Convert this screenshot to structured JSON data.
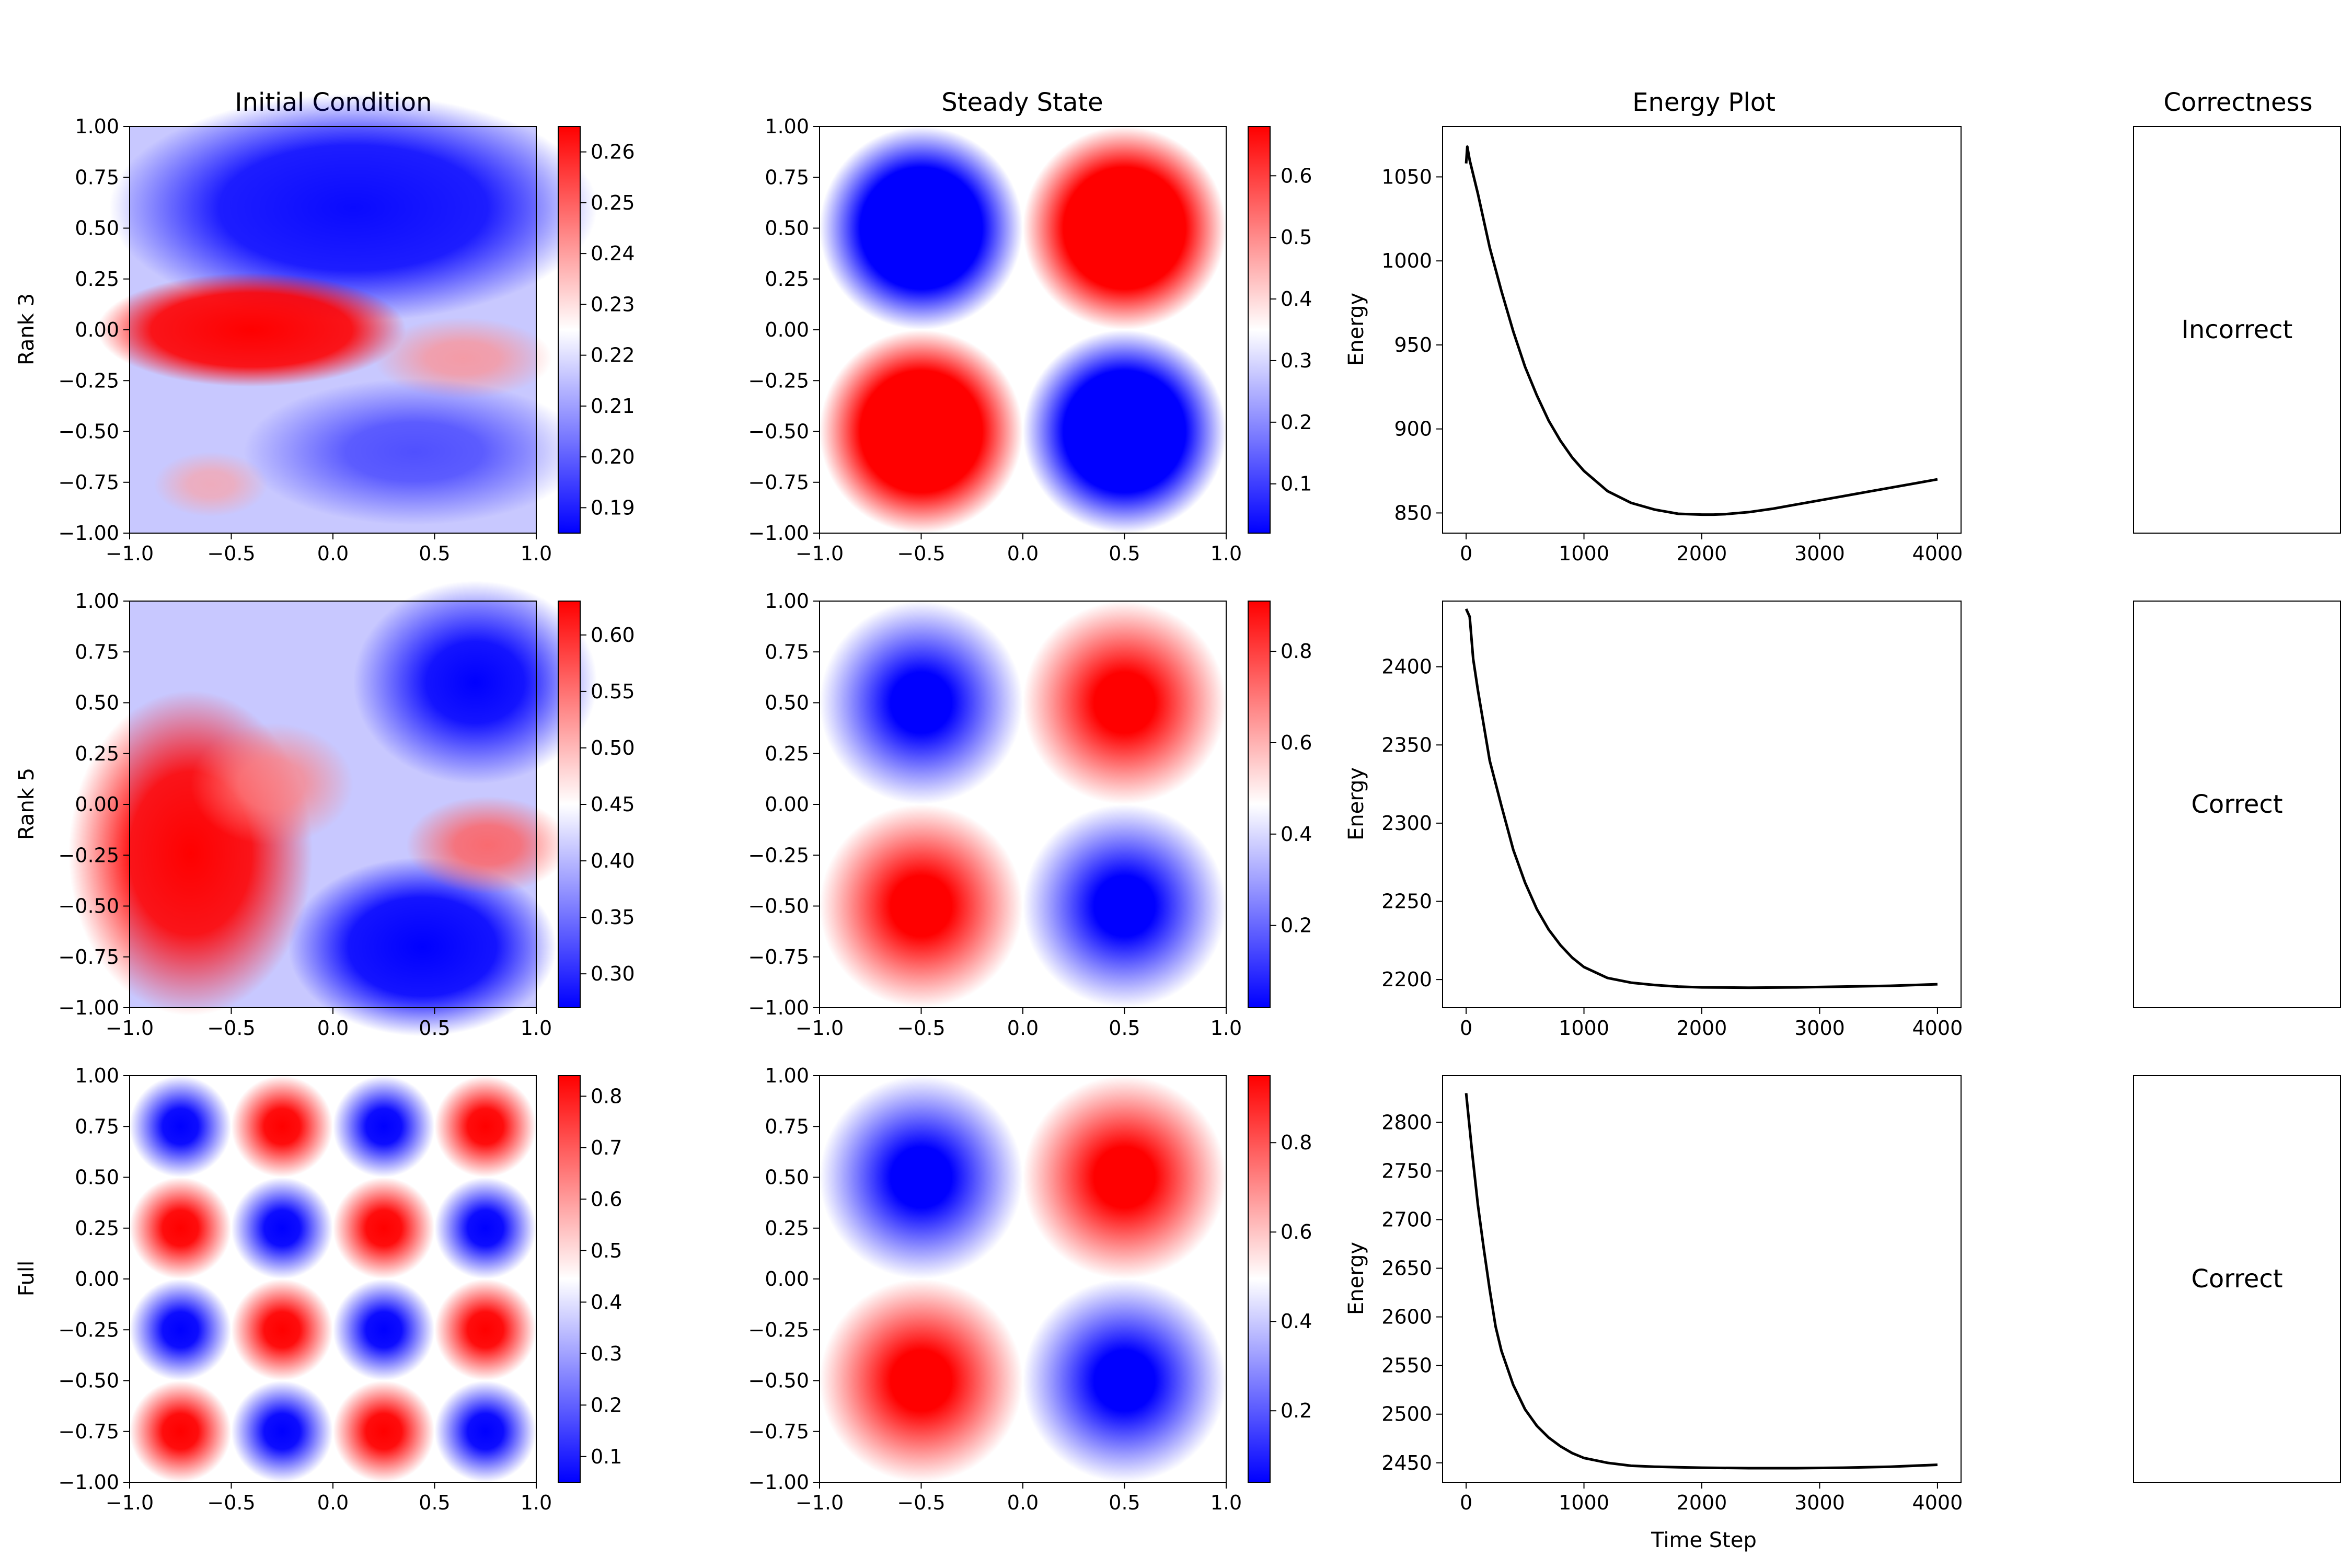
{
  "figure": {
    "column_titles": [
      "Initial Condition",
      "Steady State",
      "Energy Plot",
      "Correctness"
    ],
    "row_labels": [
      "Rank 3",
      "Rank 5",
      "Full"
    ],
    "energy_ylabel": "Energy",
    "energy_xlabel": "Time Step"
  },
  "colors": {
    "cold": "#0000ff",
    "mid": "#ffffff",
    "hot": "#ff0000",
    "line": "#000000"
  },
  "chart_data": [
    {
      "type": "heatmap",
      "panel": "Rank 3 / Initial Condition",
      "cmap": "bwr",
      "xlim": [
        -1,
        1
      ],
      "ylim": [
        -1,
        1
      ],
      "xticks": [
        "−1.0",
        "−0.5",
        "0.0",
        "0.5",
        "1.0"
      ],
      "yticks": [
        "−1.00",
        "−0.75",
        "−0.50",
        "−0.25",
        "0.00",
        "0.25",
        "0.50",
        "0.75",
        "1.00"
      ],
      "colorbar": {
        "vmin": 0.185,
        "vmax": 0.265,
        "ticks": [
          0.19,
          0.2,
          0.21,
          0.22,
          0.23,
          0.24,
          0.25,
          0.26
        ]
      }
    },
    {
      "type": "heatmap",
      "panel": "Rank 3 / Steady State",
      "cmap": "bwr",
      "xlim": [
        -1,
        1
      ],
      "ylim": [
        -1,
        1
      ],
      "xticks": [
        "−1.0",
        "−0.5",
        "0.0",
        "0.5",
        "1.0"
      ],
      "yticks": [
        "−1.00",
        "−0.75",
        "−0.50",
        "−0.25",
        "0.00",
        "0.25",
        "0.50",
        "0.75",
        "1.00"
      ],
      "colorbar": {
        "vmin": 0.02,
        "vmax": 0.68,
        "ticks": [
          0.1,
          0.2,
          0.3,
          0.4,
          0.5,
          0.6
        ]
      }
    },
    {
      "type": "line",
      "panel": "Rank 3 / Energy Plot",
      "xlim": [
        -200,
        4200
      ],
      "ylim": [
        838,
        1080
      ],
      "xticks": [
        0,
        1000,
        2000,
        3000,
        4000
      ],
      "yticks": [
        850,
        900,
        950,
        1000,
        1050
      ],
      "series": [
        {
          "x": [
            0,
            10,
            30,
            100,
            200,
            300,
            400,
            500,
            600,
            700,
            800,
            900,
            1000,
            1200,
            1400,
            1600,
            1800,
            2000,
            2100,
            2200,
            2400,
            2600,
            2800,
            3000,
            3200,
            3400,
            3600,
            3800,
            4000
          ],
          "y": [
            1058,
            1068,
            1060,
            1040,
            1008,
            982,
            958,
            937,
            920,
            905,
            893,
            883,
            875,
            863,
            856,
            852,
            849.5,
            849,
            849,
            849.3,
            850.5,
            852.5,
            855,
            857.5,
            860,
            862.5,
            865,
            867.5,
            870
          ]
        }
      ]
    },
    {
      "type": "heatmap",
      "panel": "Rank 5 / Initial Condition",
      "cmap": "bwr",
      "xlim": [
        -1,
        1
      ],
      "ylim": [
        -1,
        1
      ],
      "xticks": [
        "−1.0",
        "−0.5",
        "0.0",
        "0.5",
        "1.0"
      ],
      "yticks": [
        "−1.00",
        "−0.75",
        "−0.50",
        "−0.25",
        "0.00",
        "0.25",
        "0.50",
        "0.75",
        "1.00"
      ],
      "colorbar": {
        "vmin": 0.27,
        "vmax": 0.63,
        "ticks": [
          0.3,
          0.35,
          0.4,
          0.45,
          0.5,
          0.55,
          0.6
        ]
      }
    },
    {
      "type": "heatmap",
      "panel": "Rank 5 / Steady State",
      "cmap": "bwr",
      "xlim": [
        -1,
        1
      ],
      "ylim": [
        -1,
        1
      ],
      "xticks": [
        "−1.0",
        "−0.5",
        "0.0",
        "0.5",
        "1.0"
      ],
      "yticks": [
        "−1.00",
        "−0.75",
        "−0.50",
        "−0.25",
        "0.00",
        "0.25",
        "0.50",
        "0.75",
        "1.00"
      ],
      "colorbar": {
        "vmin": 0.02,
        "vmax": 0.91,
        "ticks": [
          0.2,
          0.4,
          0.6,
          0.8
        ]
      }
    },
    {
      "type": "line",
      "panel": "Rank 5 / Energy Plot",
      "xlim": [
        -200,
        4200
      ],
      "ylim": [
        2182,
        2442
      ],
      "xticks": [
        0,
        1000,
        2000,
        3000,
        4000
      ],
      "yticks": [
        2200,
        2250,
        2300,
        2350,
        2400
      ],
      "series": [
        {
          "x": [
            0,
            30,
            60,
            100,
            200,
            300,
            400,
            500,
            600,
            700,
            800,
            900,
            1000,
            1200,
            1400,
            1600,
            1800,
            2000,
            2400,
            2800,
            3200,
            3600,
            4000
          ],
          "y": [
            2437,
            2432,
            2405,
            2385,
            2340,
            2311,
            2283,
            2262,
            2245,
            2232,
            2222,
            2214,
            2208,
            2201,
            2198,
            2196.5,
            2195.5,
            2195,
            2194.8,
            2195,
            2195.5,
            2196,
            2197
          ]
        }
      ]
    },
    {
      "type": "heatmap",
      "panel": "Full / Initial Condition",
      "cmap": "bwr",
      "xlim": [
        -1,
        1
      ],
      "ylim": [
        -1,
        1
      ],
      "xticks": [
        "−1.0",
        "−0.5",
        "0.0",
        "0.5",
        "1.0"
      ],
      "yticks": [
        "−1.00",
        "−0.75",
        "−0.50",
        "−0.25",
        "0.00",
        "0.25",
        "0.50",
        "0.75",
        "1.00"
      ],
      "colorbar": {
        "vmin": 0.05,
        "vmax": 0.84,
        "ticks": [
          0.1,
          0.2,
          0.3,
          0.4,
          0.5,
          0.6,
          0.7,
          0.8
        ]
      }
    },
    {
      "type": "heatmap",
      "panel": "Full / Steady State",
      "cmap": "bwr",
      "xlim": [
        -1,
        1
      ],
      "ylim": [
        -1,
        1
      ],
      "xticks": [
        "−1.0",
        "−0.5",
        "0.0",
        "0.5",
        "1.0"
      ],
      "yticks": [
        "−1.00",
        "−0.75",
        "−0.50",
        "−0.25",
        "0.00",
        "0.25",
        "0.50",
        "0.75",
        "1.00"
      ],
      "colorbar": {
        "vmin": 0.04,
        "vmax": 0.95,
        "ticks": [
          0.2,
          0.4,
          0.6,
          0.8
        ]
      }
    },
    {
      "type": "line",
      "panel": "Full / Energy Plot",
      "xlim": [
        -200,
        4200
      ],
      "ylim": [
        2430,
        2848
      ],
      "xticks": [
        0,
        1000,
        2000,
        3000,
        4000
      ],
      "yticks": [
        2450,
        2500,
        2550,
        2600,
        2650,
        2700,
        2750,
        2800
      ],
      "series": [
        {
          "x": [
            0,
            50,
            100,
            150,
            200,
            250,
            300,
            400,
            500,
            600,
            700,
            800,
            900,
            1000,
            1200,
            1400,
            1600,
            1800,
            2000,
            2400,
            2800,
            3200,
            3600,
            4000
          ],
          "y": [
            2830,
            2770,
            2715,
            2670,
            2628,
            2590,
            2565,
            2530,
            2505,
            2488,
            2476,
            2467,
            2460,
            2455,
            2450,
            2447,
            2446,
            2445.5,
            2445,
            2444.5,
            2444.5,
            2445,
            2446,
            2448
          ]
        }
      ]
    },
    {
      "type": "table",
      "panel": "Correctness",
      "rows": [
        "Rank 3",
        "Rank 5",
        "Full"
      ],
      "values": [
        "Incorrect",
        "Correct",
        "Correct"
      ]
    }
  ]
}
